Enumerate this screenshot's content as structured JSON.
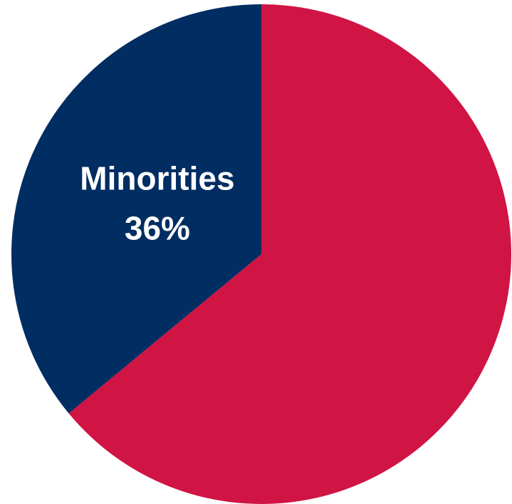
{
  "chart_data": {
    "type": "pie",
    "categories": [
      null,
      "Minorities"
    ],
    "values": [
      64,
      36
    ],
    "value_labels": [
      null,
      "36%"
    ],
    "colors": [
      "#d01444",
      "#002d62"
    ],
    "start_angle": 0,
    "direction": "clockwise"
  }
}
